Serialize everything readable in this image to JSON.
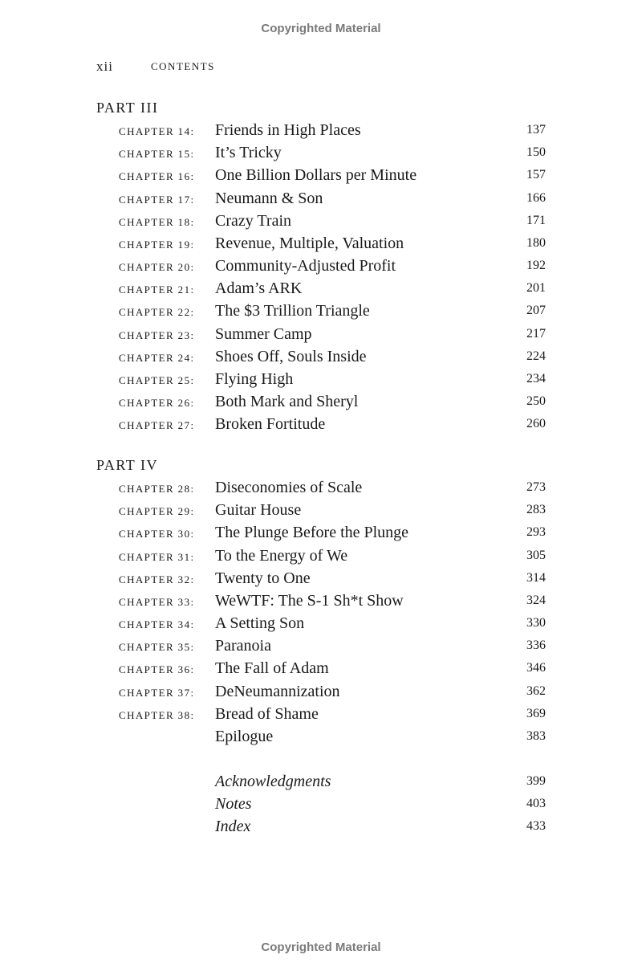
{
  "watermark": "Copyrighted Material",
  "header": {
    "folio": "xii",
    "running_head": "CONTENTS"
  },
  "parts": [
    {
      "title": "PART III",
      "chapters": [
        {
          "label": "CHAPTER 14:",
          "title": "Friends in High Places",
          "page": "137"
        },
        {
          "label": "CHAPTER 15:",
          "title": "It’s Tricky",
          "page": "150"
        },
        {
          "label": "CHAPTER 16:",
          "title": "One Billion Dollars per Minute",
          "page": "157"
        },
        {
          "label": "CHAPTER 17:",
          "title": "Neumann & Son",
          "page": "166"
        },
        {
          "label": "CHAPTER 18:",
          "title": "Crazy Train",
          "page": "171"
        },
        {
          "label": "CHAPTER 19:",
          "title": "Revenue, Multiple, Valuation",
          "page": "180"
        },
        {
          "label": "CHAPTER 20:",
          "title": "Community-Adjusted Profit",
          "page": "192"
        },
        {
          "label": "CHAPTER 21:",
          "title": "Adam’s ARK",
          "page": "201"
        },
        {
          "label": "CHAPTER 22:",
          "title": "The $3 Trillion Triangle",
          "page": "207"
        },
        {
          "label": "CHAPTER 23:",
          "title": "Summer Camp",
          "page": "217"
        },
        {
          "label": "CHAPTER 24:",
          "title": "Shoes Off, Souls Inside",
          "page": "224"
        },
        {
          "label": "CHAPTER 25:",
          "title": "Flying High",
          "page": "234"
        },
        {
          "label": "CHAPTER 26:",
          "title": "Both Mark and Sheryl",
          "page": "250"
        },
        {
          "label": "CHAPTER 27:",
          "title": "Broken Fortitude",
          "page": "260"
        }
      ]
    },
    {
      "title": "PART IV",
      "chapters": [
        {
          "label": "CHAPTER 28:",
          "title": "Diseconomies of Scale",
          "page": "273"
        },
        {
          "label": "CHAPTER 29:",
          "title": "Guitar House",
          "page": "283"
        },
        {
          "label": "CHAPTER 30:",
          "title": "The Plunge Before the Plunge",
          "page": "293"
        },
        {
          "label": "CHAPTER 31:",
          "title": "To the Energy of We",
          "page": "305"
        },
        {
          "label": "CHAPTER 32:",
          "title": "Twenty to One",
          "page": "314"
        },
        {
          "label": "CHAPTER 33:",
          "title": "WeWTF: The S-1 Sh*t Show",
          "page": "324"
        },
        {
          "label": "CHAPTER 34:",
          "title": "A Setting Son",
          "page": "330"
        },
        {
          "label": "CHAPTER 35:",
          "title": "Paranoia",
          "page": "336"
        },
        {
          "label": "CHAPTER 36:",
          "title": "The Fall of Adam",
          "page": "346"
        },
        {
          "label": "CHAPTER 37:",
          "title": "DeNeumannization",
          "page": "362"
        },
        {
          "label": "CHAPTER 38:",
          "title": "Bread of Shame",
          "page": "369"
        },
        {
          "label": "",
          "title": "Epilogue",
          "page": "383"
        }
      ]
    }
  ],
  "back_matter": [
    {
      "title": "Acknowledgments",
      "page": "399"
    },
    {
      "title": "Notes",
      "page": "403"
    },
    {
      "title": "Index",
      "page": "433"
    }
  ]
}
